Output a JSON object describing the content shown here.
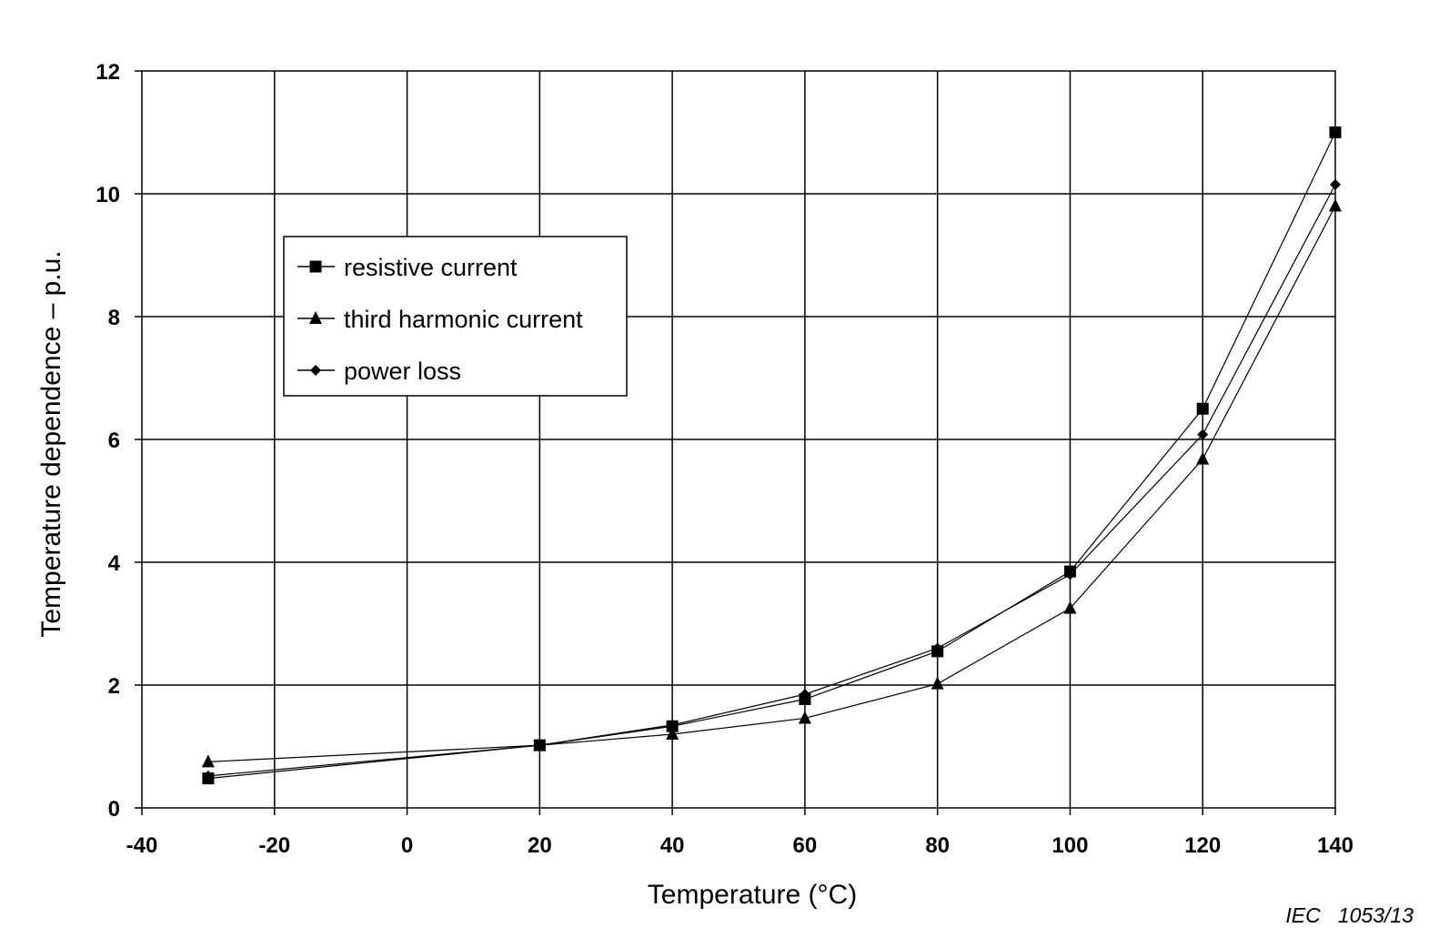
{
  "chart_data": {
    "type": "line",
    "title": "",
    "xlabel": "Temperature   (°C)",
    "ylabel": "Temperature dependence – p.u.",
    "xlim": [
      -40,
      140
    ],
    "ylim": [
      0,
      12
    ],
    "xticks": [
      -40,
      -20,
      0,
      20,
      40,
      60,
      80,
      100,
      120,
      140
    ],
    "yticks": [
      0,
      2,
      4,
      6,
      8,
      10,
      12
    ],
    "grid": true,
    "legend_position": "upper-left",
    "series": [
      {
        "name": "resistive current",
        "marker": "square",
        "x": [
          -30,
          20,
          40,
          60,
          80,
          100,
          120,
          140
        ],
        "y": [
          0.48,
          1.02,
          1.33,
          1.77,
          2.55,
          3.85,
          6.5,
          11.0
        ]
      },
      {
        "name": "third harmonic current",
        "marker": "triangle",
        "x": [
          -30,
          20,
          40,
          60,
          80,
          100,
          120,
          140
        ],
        "y": [
          0.75,
          1.02,
          1.2,
          1.46,
          2.02,
          3.25,
          5.68,
          9.8
        ]
      },
      {
        "name": "power loss",
        "marker": "diamond",
        "x": [
          -30,
          20,
          40,
          60,
          80,
          100,
          120,
          140
        ],
        "y": [
          0.52,
          1.02,
          1.35,
          1.85,
          2.6,
          3.8,
          6.08,
          10.15
        ]
      }
    ]
  },
  "source_note": "IEC   1053/13"
}
